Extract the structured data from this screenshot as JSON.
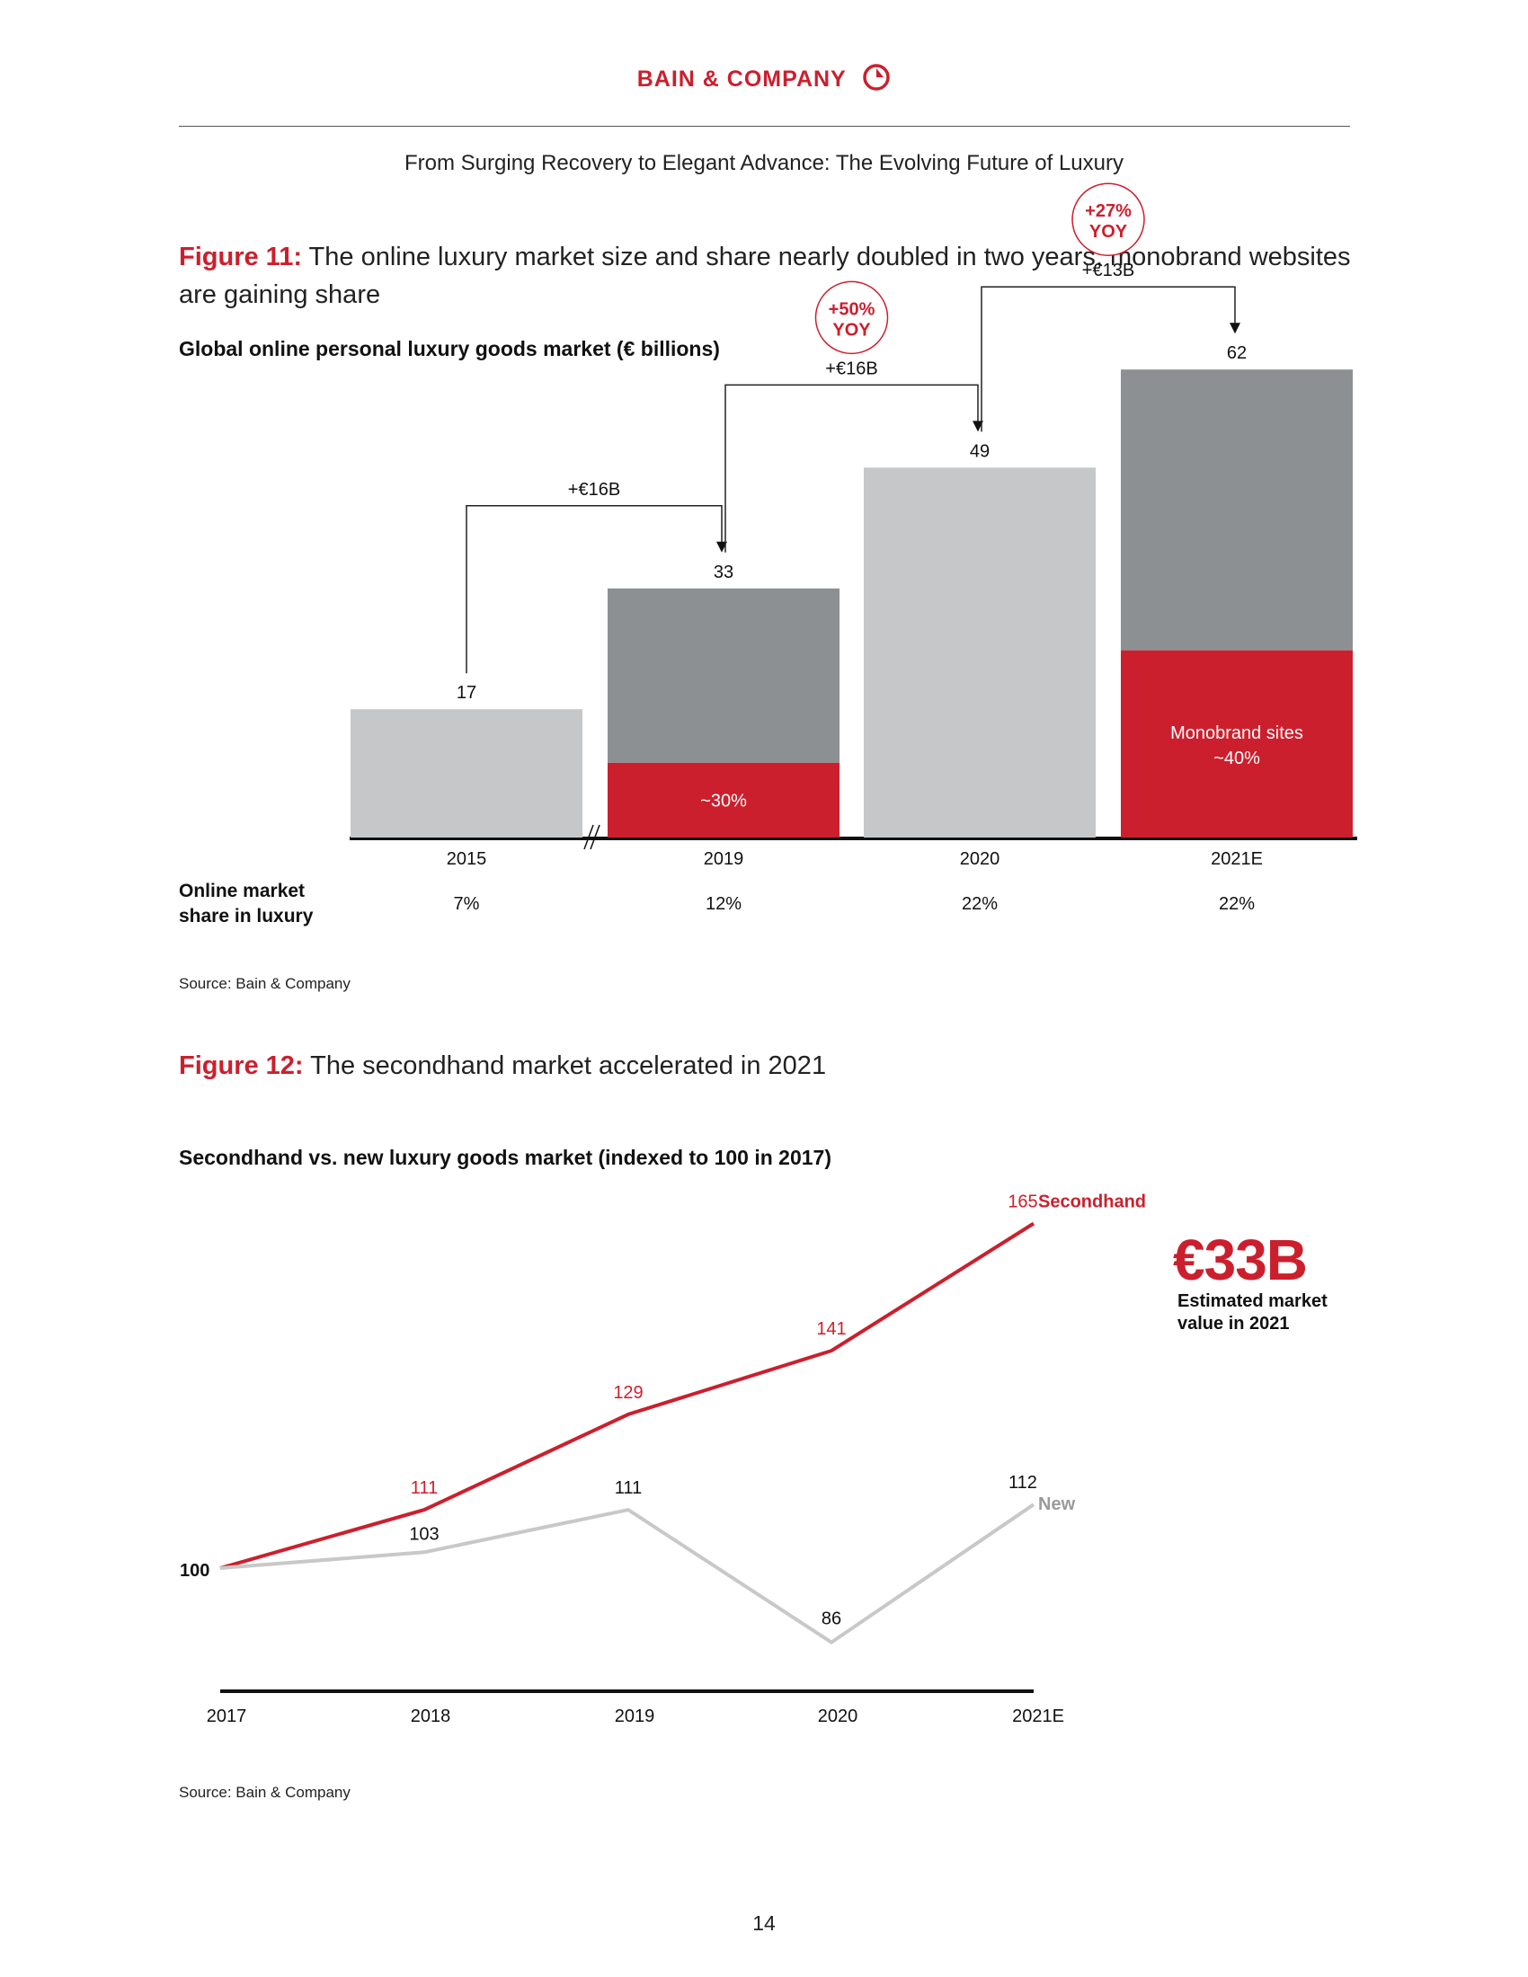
{
  "header": {
    "brand": "BAIN & COMPANY",
    "doc_title": "From Surging Recovery to Elegant Advance: The Evolving Future of Luxury"
  },
  "colors": {
    "red": "#cc1f2d",
    "dark_gray": "#8d9093",
    "light_gray": "#c5c7c8",
    "new_line": "#c8c8c8"
  },
  "figure11": {
    "label": "Figure 11:",
    "title": "The online luxury market size and share nearly doubled in two years; monobrand websites are gaining share",
    "subtitle": "Global online personal luxury goods market (€ billions)",
    "share_row_label": "Online market share in luxury",
    "source": "Source: Bain & Company"
  },
  "figure12": {
    "label": "Figure 12:",
    "title": "The secondhand market accelerated in 2021",
    "subtitle": "Secondhand vs. new luxury goods market (indexed to 100 in 2017)",
    "big_value": "€33B",
    "big_value_note": "Estimated market value in 2021",
    "source": "Source: Bain & Company"
  },
  "page_number": "14",
  "chart_data": [
    {
      "type": "bar",
      "categories": [
        "2015",
        "2019",
        "2020",
        "2021E"
      ],
      "values": [
        17,
        33,
        49,
        62
      ],
      "value_labels": [
        "17",
        "33",
        "49",
        "62"
      ],
      "monobrand_share": [
        null,
        0.3,
        null,
        0.4
      ],
      "segment_labels": [
        "",
        "~30%",
        "",
        "Monobrand sites ~40%"
      ],
      "online_share": [
        "7%",
        "12%",
        "22%",
        "22%"
      ],
      "axis_break_after": "2015",
      "deltas": [
        {
          "from": "2015",
          "to": "2019",
          "label": "+€16B",
          "yoy": ""
        },
        {
          "from": "2019",
          "to": "2020",
          "label": "+€16B",
          "yoy": "+50% YOY"
        },
        {
          "from": "2020",
          "to": "2021E",
          "label": "+€13B",
          "yoy": "+27% YOY"
        }
      ],
      "title": "Global online personal luxury goods market (€ billions)"
    },
    {
      "type": "line",
      "x": [
        "2017",
        "2018",
        "2019",
        "2020",
        "2021E"
      ],
      "series": [
        {
          "name": "Secondhand",
          "values": [
            100,
            111,
            129,
            141,
            165
          ],
          "labels": [
            "100",
            "111",
            "129",
            "141",
            "165"
          ]
        },
        {
          "name": "New",
          "values": [
            100,
            103,
            111,
            86,
            112
          ],
          "labels": [
            "",
            "103",
            "111",
            "86",
            "112"
          ]
        }
      ],
      "title": "Secondhand vs. new luxury goods market (indexed to 100 in 2017)"
    }
  ]
}
